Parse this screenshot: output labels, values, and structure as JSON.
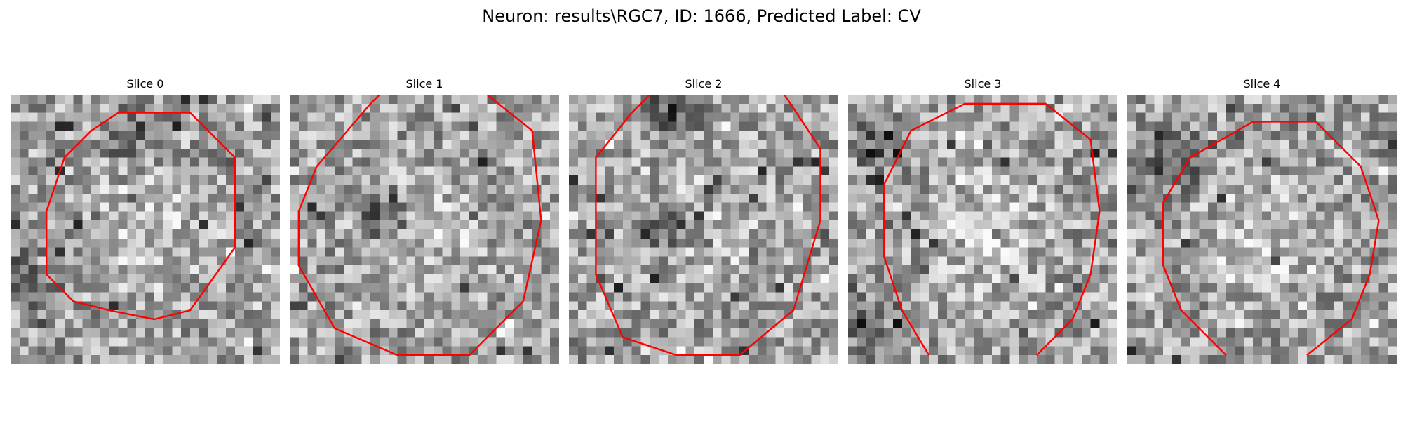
{
  "figure": {
    "title": "Neuron: results\\RGC7, ID: 1666, Predicted Label: CV",
    "outline_color": "#ff0000",
    "grid_cells": 30
  },
  "slices": [
    {
      "title": "Slice 0",
      "outline": [
        [
          12,
          2
        ],
        [
          20,
          2
        ],
        [
          25,
          7
        ],
        [
          25,
          17
        ],
        [
          20,
          24
        ],
        [
          16,
          25
        ],
        [
          11,
          24
        ],
        [
          7,
          23
        ],
        [
          4,
          20
        ],
        [
          4,
          13
        ],
        [
          6,
          7
        ],
        [
          9,
          4
        ]
      ],
      "dark_centers": [
        [
          13,
          4
        ],
        [
          2,
          20
        ]
      ],
      "bright_center": [
        15,
        15
      ]
    },
    {
      "title": "Slice 1",
      "outline": [
        [
          10,
          0
        ],
        [
          9,
          1
        ],
        [
          3,
          8
        ],
        [
          1,
          13
        ],
        [
          1,
          19
        ],
        [
          5,
          26
        ],
        [
          12,
          29
        ],
        [
          20,
          29
        ],
        [
          26,
          23
        ],
        [
          28,
          14
        ],
        [
          27,
          4
        ],
        [
          22,
          0
        ]
      ],
      "dark_centers": [
        [
          10,
          13
        ]
      ],
      "bright_center": [
        15,
        15
      ]
    },
    {
      "title": "Slice 2",
      "outline": [
        [
          9,
          0
        ],
        [
          7,
          2
        ],
        [
          3,
          7
        ],
        [
          3,
          20
        ],
        [
          6,
          27
        ],
        [
          12,
          29
        ],
        [
          19,
          29
        ],
        [
          25,
          24
        ],
        [
          28,
          14
        ],
        [
          28,
          6
        ],
        [
          24,
          0
        ]
      ],
      "dark_centers": [
        [
          11,
          15
        ],
        [
          11,
          1
        ]
      ],
      "bright_center": [
        15,
        15
      ]
    },
    {
      "title": "Slice 3",
      "outline": [
        [
          9,
          29
        ],
        [
          6,
          24
        ],
        [
          4,
          18
        ],
        [
          4,
          10
        ],
        [
          7,
          4
        ],
        [
          13,
          1
        ],
        [
          22,
          1
        ],
        [
          27,
          5
        ],
        [
          28,
          13
        ],
        [
          27,
          20
        ],
        [
          25,
          25
        ],
        [
          21,
          29
        ]
      ],
      "dark_centers": [
        [
          3,
          5
        ],
        [
          2,
          25
        ]
      ],
      "bright_center": [
        15,
        15
      ]
    },
    {
      "title": "Slice 4",
      "outline": [
        [
          11,
          29
        ],
        [
          6,
          24
        ],
        [
          4,
          19
        ],
        [
          4,
          12
        ],
        [
          7,
          7
        ],
        [
          14,
          3
        ],
        [
          21,
          3
        ],
        [
          26,
          8
        ],
        [
          28,
          14
        ],
        [
          27,
          20
        ],
        [
          25,
          25
        ],
        [
          20,
          29
        ]
      ],
      "dark_centers": [
        [
          5,
          7
        ]
      ],
      "bright_center": [
        15,
        15
      ]
    }
  ]
}
